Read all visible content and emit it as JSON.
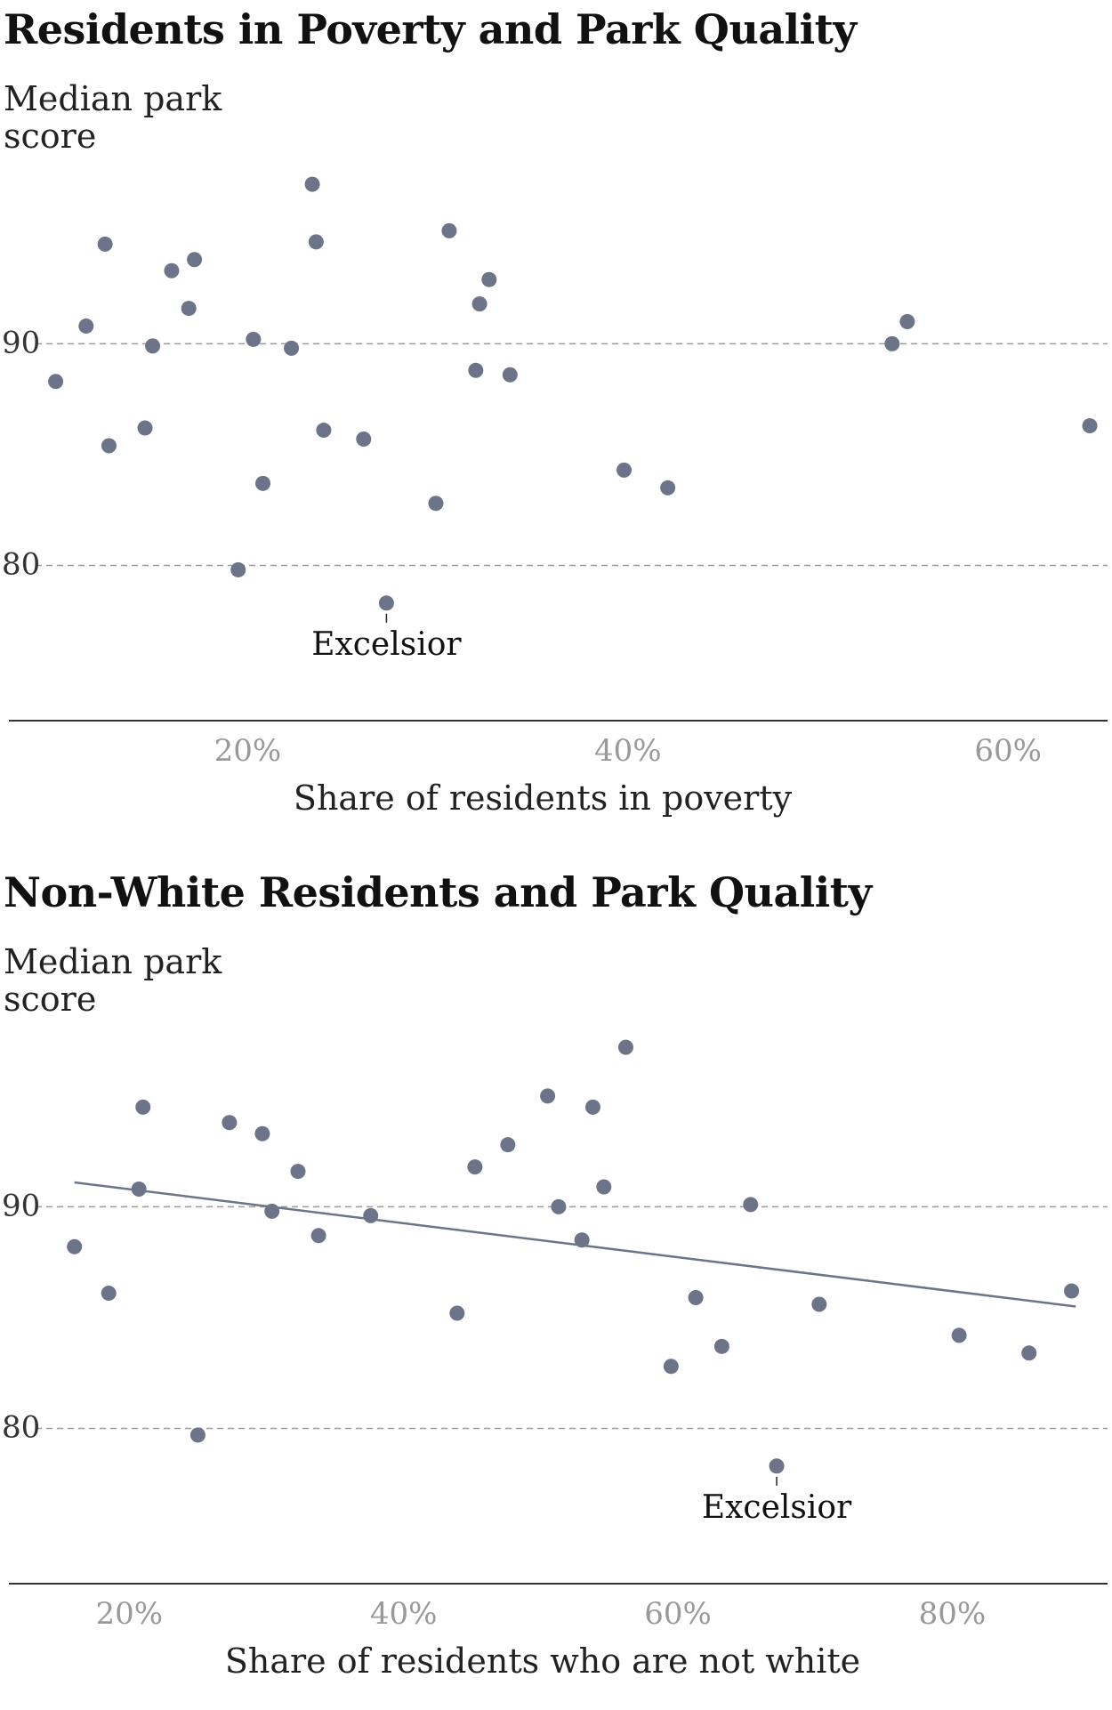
{
  "chart_data": [
    {
      "type": "scatter",
      "title": "Residents in Poverty and Park Quality",
      "ylabel": [
        "Median park",
        "score"
      ],
      "xlabel": "Share of residents in poverty",
      "xlim": [
        8,
        65
      ],
      "ylim": [
        75,
        101.5
      ],
      "y_ticks": [
        80,
        90
      ],
      "y_tick_labels": [
        "80",
        "90"
      ],
      "x_ticks": [
        20,
        40,
        60
      ],
      "x_tick_labels": [
        "20%",
        "40%",
        "60%"
      ],
      "grid": "dashed horizontal at y ticks",
      "trendline": null,
      "points": [
        {
          "x": 9.9,
          "y": 88.3
        },
        {
          "x": 11.5,
          "y": 90.8
        },
        {
          "x": 12.5,
          "y": 94.5
        },
        {
          "x": 12.7,
          "y": 85.4
        },
        {
          "x": 14.6,
          "y": 86.2
        },
        {
          "x": 15.0,
          "y": 89.9
        },
        {
          "x": 16.0,
          "y": 93.3
        },
        {
          "x": 16.9,
          "y": 91.6
        },
        {
          "x": 17.2,
          "y": 93.8
        },
        {
          "x": 19.5,
          "y": 79.8
        },
        {
          "x": 20.3,
          "y": 90.2
        },
        {
          "x": 20.8,
          "y": 83.7
        },
        {
          "x": 22.3,
          "y": 89.8
        },
        {
          "x": 23.4,
          "y": 97.2
        },
        {
          "x": 23.6,
          "y": 94.6
        },
        {
          "x": 24.0,
          "y": 86.1
        },
        {
          "x": 26.1,
          "y": 85.7
        },
        {
          "x": 27.3,
          "y": 78.3
        },
        {
          "x": 29.9,
          "y": 82.8
        },
        {
          "x": 30.6,
          "y": 95.1
        },
        {
          "x": 32.0,
          "y": 88.8
        },
        {
          "x": 32.2,
          "y": 91.8
        },
        {
          "x": 32.7,
          "y": 92.9
        },
        {
          "x": 33.8,
          "y": 88.6
        },
        {
          "x": 39.8,
          "y": 84.3
        },
        {
          "x": 42.1,
          "y": 83.5
        },
        {
          "x": 53.9,
          "y": 90.0
        },
        {
          "x": 54.7,
          "y": 91.0
        },
        {
          "x": 64.3,
          "y": 86.3
        }
      ],
      "annotations": [
        {
          "label": "Excelsior",
          "x": 27.3,
          "y": 78.3
        }
      ],
      "colors": {
        "point": "#6b7489",
        "grid": "#9a9a9a",
        "axis": "#333333"
      }
    },
    {
      "type": "scatter",
      "title": "Non-White Residents and Park Quality",
      "ylabel": [
        "Median park",
        "score"
      ],
      "xlabel": "Share of residents who are not white",
      "xlim": [
        12,
        91
      ],
      "ylim": [
        75,
        101.5
      ],
      "y_ticks": [
        80,
        90
      ],
      "y_tick_labels": [
        "80",
        "90"
      ],
      "x_ticks": [
        20,
        40,
        60,
        80
      ],
      "x_tick_labels": [
        "20%",
        "40%",
        "60%",
        "80%"
      ],
      "grid": "dashed horizontal at y ticks",
      "trendline": {
        "x": [
          16,
          89
        ],
        "y": [
          91.1,
          85.5
        ]
      },
      "points": [
        {
          "x": 16.0,
          "y": 88.2
        },
        {
          "x": 18.5,
          "y": 86.1
        },
        {
          "x": 20.7,
          "y": 90.8
        },
        {
          "x": 21.0,
          "y": 94.5
        },
        {
          "x": 25.0,
          "y": 79.7
        },
        {
          "x": 27.3,
          "y": 93.8
        },
        {
          "x": 29.7,
          "y": 93.3
        },
        {
          "x": 30.4,
          "y": 89.8
        },
        {
          "x": 32.3,
          "y": 91.6
        },
        {
          "x": 33.8,
          "y": 88.7
        },
        {
          "x": 37.6,
          "y": 89.6
        },
        {
          "x": 43.9,
          "y": 85.2
        },
        {
          "x": 45.2,
          "y": 91.8
        },
        {
          "x": 47.6,
          "y": 92.8
        },
        {
          "x": 50.5,
          "y": 95.0
        },
        {
          "x": 51.3,
          "y": 90.0
        },
        {
          "x": 53.0,
          "y": 88.5
        },
        {
          "x": 53.8,
          "y": 94.5
        },
        {
          "x": 54.6,
          "y": 90.9
        },
        {
          "x": 56.2,
          "y": 97.2
        },
        {
          "x": 59.5,
          "y": 82.8
        },
        {
          "x": 61.3,
          "y": 85.9
        },
        {
          "x": 63.2,
          "y": 83.7
        },
        {
          "x": 65.3,
          "y": 90.1
        },
        {
          "x": 67.2,
          "y": 78.3
        },
        {
          "x": 70.3,
          "y": 85.6
        },
        {
          "x": 80.5,
          "y": 84.2
        },
        {
          "x": 85.6,
          "y": 83.4
        },
        {
          "x": 88.7,
          "y": 86.2
        }
      ],
      "annotations": [
        {
          "label": "Excelsior",
          "x": 67.2,
          "y": 78.3
        }
      ],
      "colors": {
        "point": "#6b7489",
        "line": "#6b7489",
        "grid": "#9a9a9a",
        "axis": "#333333"
      }
    }
  ]
}
